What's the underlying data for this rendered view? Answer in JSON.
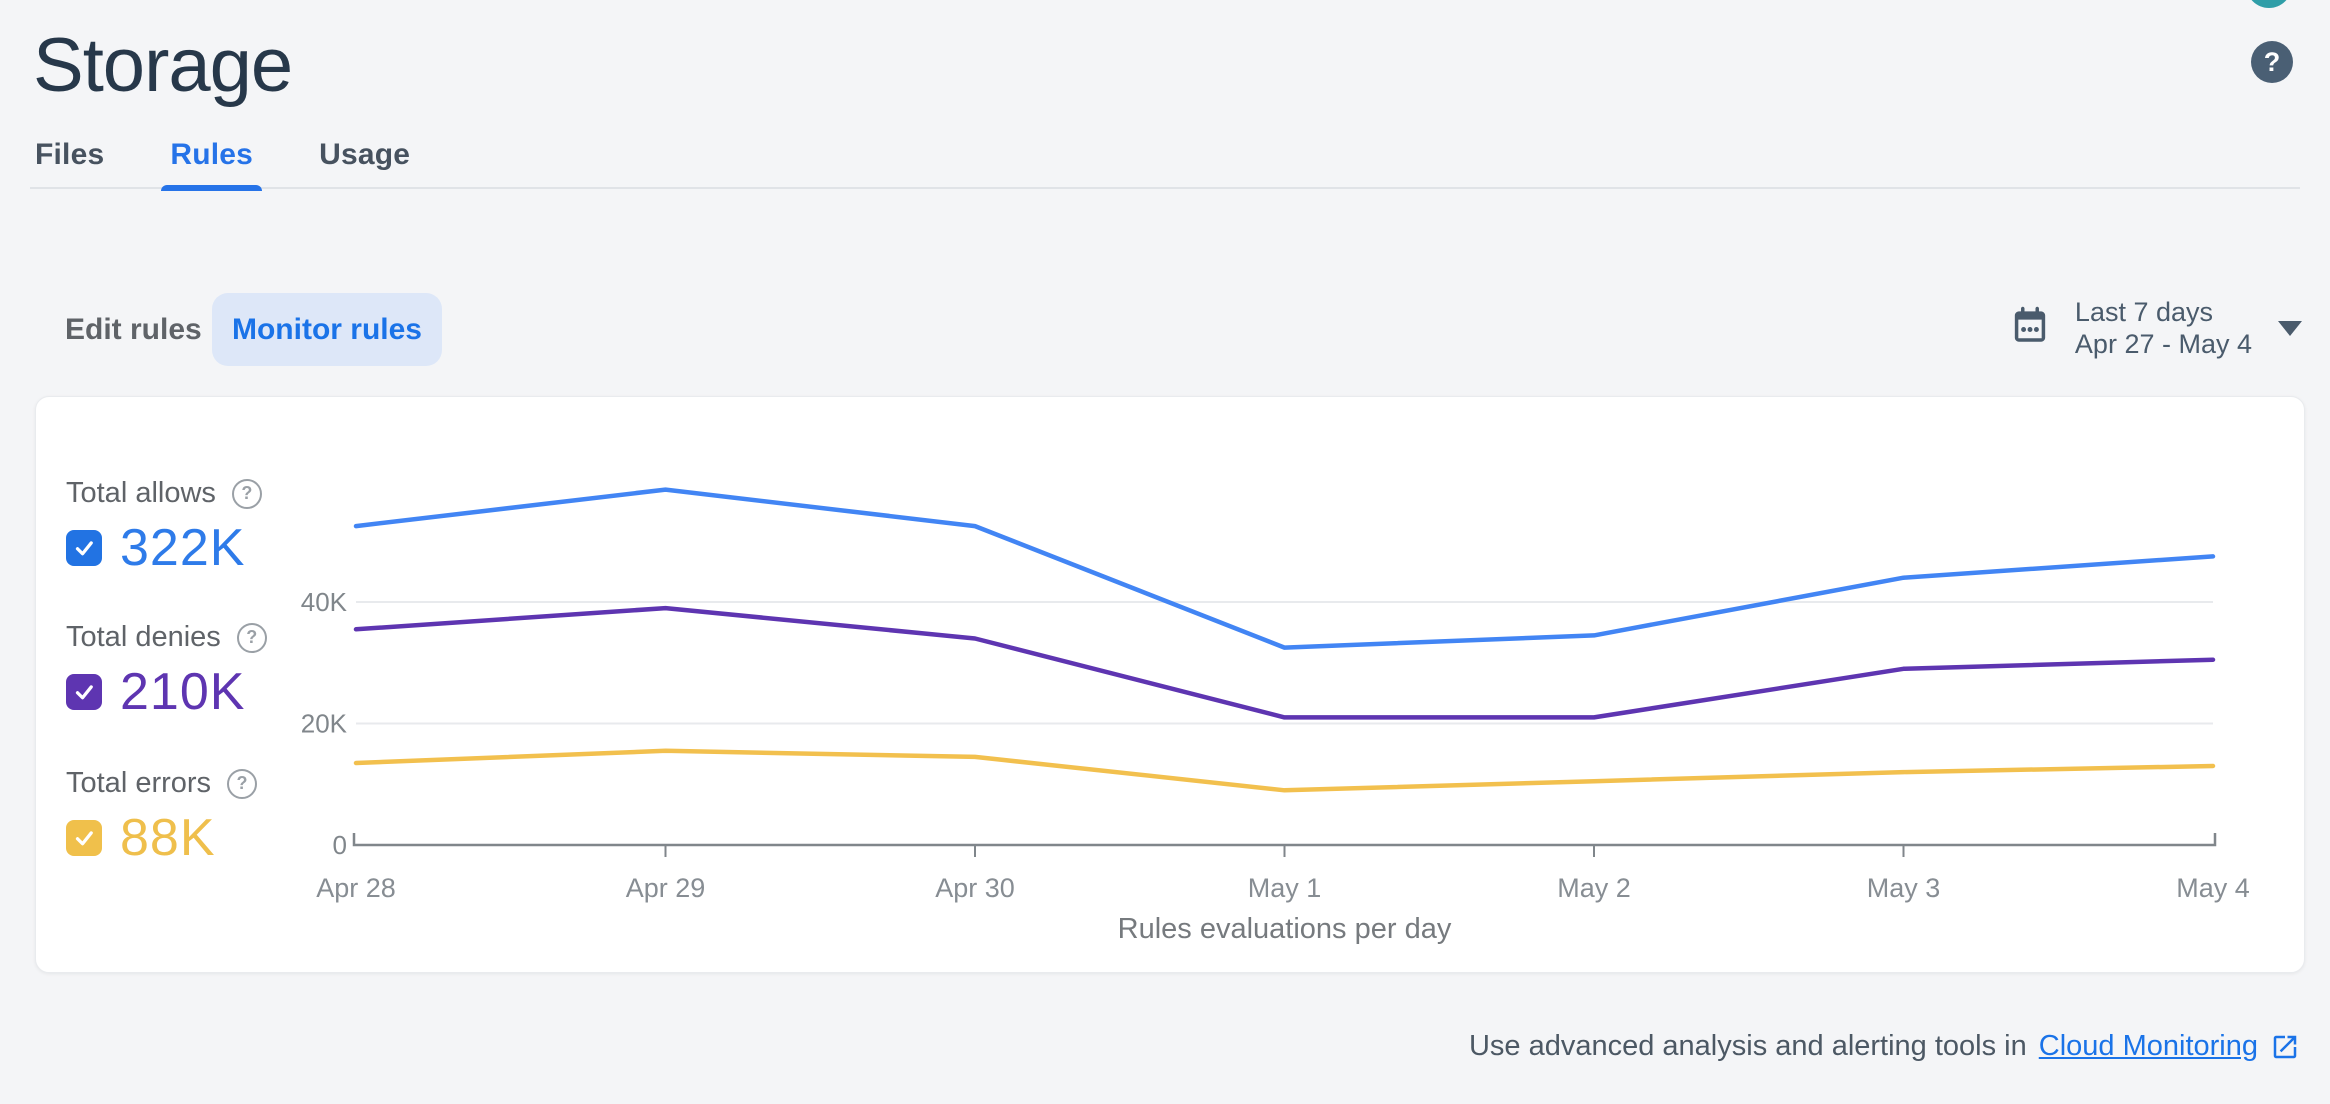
{
  "header": {
    "title": "Storage"
  },
  "tabs": [
    {
      "label": "Files",
      "active": false
    },
    {
      "label": "Rules",
      "active": true
    },
    {
      "label": "Usage",
      "active": false
    }
  ],
  "controls": {
    "edit_rules_label": "Edit rules",
    "monitor_rules_label": "Monitor rules",
    "date_range": {
      "preset": "Last 7 days",
      "range": "Apr 27 - May 4"
    }
  },
  "legend": [
    {
      "id": "allows",
      "label": "Total allows",
      "total": "322K",
      "text_color": "#2e7be9",
      "checkbox_color": "#2273e3",
      "checked": true
    },
    {
      "id": "denies",
      "label": "Total denies",
      "total": "210K",
      "text_color": "#5e35b1",
      "checkbox_color": "#5e35b1",
      "checked": true
    },
    {
      "id": "errors",
      "label": "Total errors",
      "total": "88K",
      "text_color": "#efbf4c",
      "checkbox_color": "#f0c04b",
      "checked": true
    }
  ],
  "chart_data": {
    "type": "line",
    "x": [
      "Apr 28",
      "Apr 29",
      "Apr 30",
      "May 1",
      "May 2",
      "May 3",
      "May 4"
    ],
    "series": [
      {
        "name": "Total allows",
        "color": "#4285f4",
        "values_k": [
          52.5,
          58.5,
          52.5,
          32.5,
          34.5,
          44,
          47.5
        ],
        "total": "322K"
      },
      {
        "name": "Total denies",
        "color": "#5e35b1",
        "values_k": [
          35.5,
          39,
          34,
          21,
          21,
          29,
          30.5
        ],
        "total": "210K"
      },
      {
        "name": "Total errors",
        "color": "#f2c04e",
        "values_k": [
          13.5,
          15.5,
          14.5,
          9,
          10.5,
          12,
          13
        ],
        "total": "88K"
      }
    ],
    "y_ticks": [
      {
        "value": 0,
        "label": "0"
      },
      {
        "value": 20000,
        "label": "20K"
      },
      {
        "value": 40000,
        "label": "40K"
      }
    ],
    "ylim": [
      0,
      70000
    ],
    "xlabel": "Rules evaluations per day",
    "grid": "horizontal",
    "legend_position": "left"
  },
  "footer": {
    "text_prefix": "Use advanced analysis and alerting tools in",
    "link_label": "Cloud Monitoring"
  },
  "colors": {
    "accent_blue": "#2673e8",
    "pill_bg": "#dde7f8",
    "axis": "#80868b",
    "gridline": "#e8eaed",
    "tick_label": "#878d93",
    "caption": "#767a7e"
  }
}
